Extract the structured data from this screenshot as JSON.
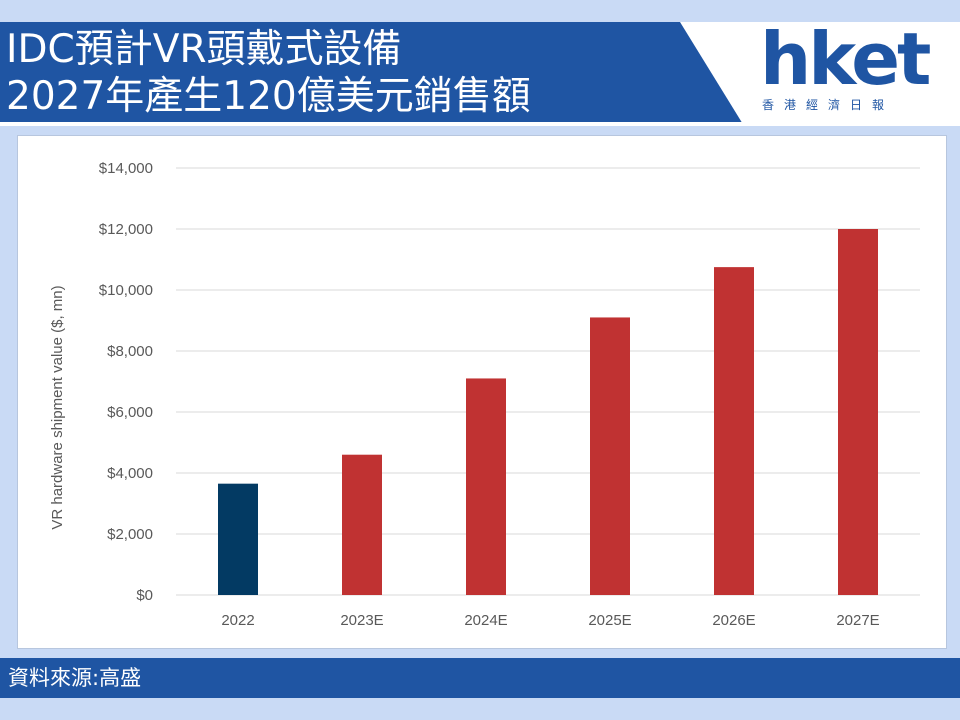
{
  "header": {
    "title_line1": "IDC預計VR頭戴式設備",
    "title_line2": "2027年產生120億美元銷售額",
    "logo_text": "hket",
    "logo_subtitle": "香港經濟日報"
  },
  "footer": {
    "source": "資料來源:高盛"
  },
  "colors": {
    "banner": "#1f55a3",
    "background": "#c9daf5",
    "actual_bar": "#033a63",
    "estimate_bar": "#c03232",
    "gridline": "#d9d9d9"
  },
  "chart_data": {
    "type": "bar",
    "title": "",
    "xlabel": "",
    "ylabel": "VR hardware shipment value ($, mn)",
    "categories": [
      "2022",
      "2023E",
      "2024E",
      "2025E",
      "2026E",
      "2027E"
    ],
    "values": [
      3650,
      4600,
      7100,
      9100,
      10750,
      12000
    ],
    "bar_colors": [
      "#033a63",
      "#c03232",
      "#c03232",
      "#c03232",
      "#c03232",
      "#c03232"
    ],
    "ylim": [
      0,
      14000
    ],
    "yticks": [
      0,
      2000,
      4000,
      6000,
      8000,
      10000,
      12000,
      14000
    ],
    "ytick_labels": [
      "$0",
      "$2,000",
      "$4,000",
      "$6,000",
      "$8,000",
      "$10,000",
      "$12,000",
      "$14,000"
    ],
    "grid": true,
    "legend": "none"
  }
}
